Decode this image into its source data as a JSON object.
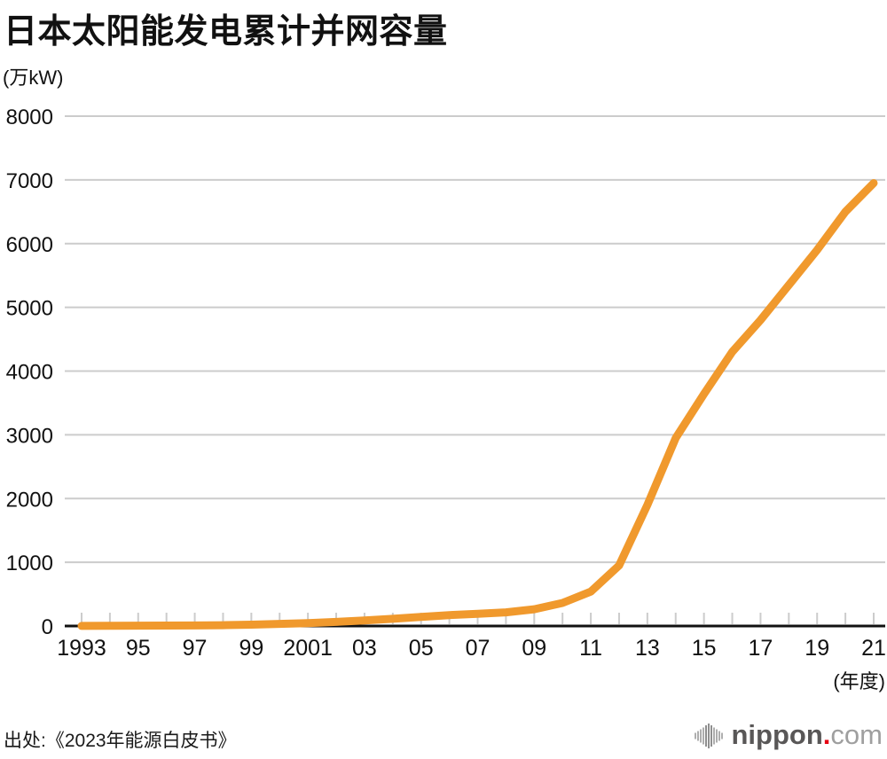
{
  "page": {
    "title": "日本太阳能发电累计并网容量",
    "unit_label": "(万kW)",
    "axis_caption": "(年度)",
    "source": "出处:《2023年能源白皮书》"
  },
  "logo": {
    "icon": "soundwave-bars-icon",
    "brand": "nippon",
    "dot": ".",
    "tld": "com"
  },
  "colors": {
    "line": "#F0992D",
    "grid": "#cccccc",
    "tick": "#cccccc",
    "axis": "#111111",
    "text": "#111111",
    "logo_dark": "#595757",
    "logo_light": "#9f9f9f",
    "logo_dot": "#e60012"
  },
  "chart_data": {
    "type": "line",
    "title": "日本太阳能发电累计并网容量",
    "ylabel": "(万kW)",
    "xlabel": "(年度)",
    "series_name": "太阳能发电累计并网容量",
    "x": [
      1993,
      1994,
      1995,
      1996,
      1997,
      1998,
      1999,
      2000,
      2001,
      2002,
      2003,
      2004,
      2005,
      2006,
      2007,
      2008,
      2009,
      2010,
      2011,
      2012,
      2013,
      2014,
      2015,
      2016,
      2017,
      2018,
      2019,
      2020,
      2021
    ],
    "values": [
      2,
      3,
      5,
      7,
      9,
      13,
      21,
      33,
      45,
      64,
      86,
      113,
      142,
      171,
      192,
      214,
      263,
      362,
      540,
      950,
      1900,
      2950,
      3640,
      4300,
      4800,
      5350,
      5900,
      6500,
      6950
    ],
    "ylim": [
      0,
      8000
    ],
    "y_ticks": [
      0,
      1000,
      2000,
      3000,
      4000,
      5000,
      6000,
      7000,
      8000
    ],
    "x_tick_label_years": [
      1993,
      1995,
      1997,
      1999,
      2001,
      2003,
      2005,
      2007,
      2009,
      2011,
      2013,
      2015,
      2017,
      2019,
      2021
    ],
    "x_tick_labels": [
      "1993",
      "95",
      "97",
      "99",
      "2001",
      "03",
      "05",
      "07",
      "09",
      "11",
      "13",
      "15",
      "17",
      "19",
      "21"
    ],
    "grid": true,
    "legend_position": "none"
  }
}
